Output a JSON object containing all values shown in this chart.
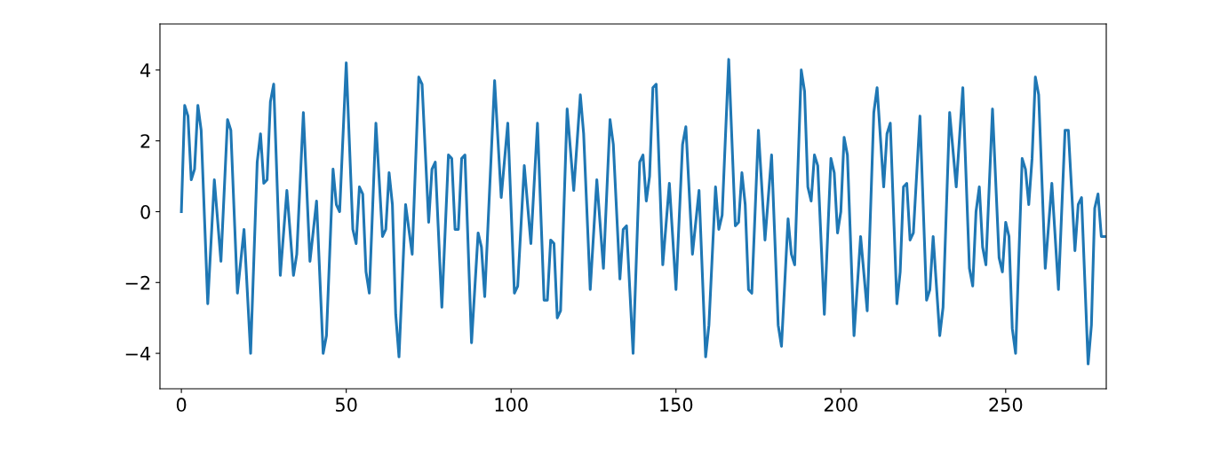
{
  "chart_data": {
    "type": "line",
    "x": [
      0,
      1,
      2,
      3,
      4,
      5,
      6,
      8,
      10,
      12,
      14,
      15,
      17,
      19,
      21,
      23,
      24,
      25,
      26,
      27,
      28,
      30,
      32,
      34,
      35,
      37,
      39,
      41,
      43,
      44,
      46,
      47,
      48,
      50,
      52,
      53,
      54,
      55,
      56,
      57,
      59,
      61,
      62,
      63,
      64,
      65,
      66,
      68,
      70,
      72,
      73,
      75,
      76,
      77,
      79,
      81,
      82,
      83,
      84,
      85,
      86,
      88,
      90,
      91,
      92,
      95,
      97,
      99,
      101,
      102,
      104,
      106,
      108,
      110,
      111,
      112,
      113,
      114,
      115,
      117,
      119,
      121,
      122,
      124,
      126,
      128,
      130,
      131,
      133,
      134,
      135,
      137,
      139,
      140,
      141,
      142,
      143,
      144,
      146,
      148,
      150,
      152,
      153,
      155,
      157,
      159,
      160,
      162,
      163,
      164,
      166,
      168,
      169,
      170,
      171,
      172,
      173,
      175,
      177,
      179,
      181,
      182,
      184,
      185,
      186,
      188,
      189,
      190,
      191,
      192,
      193,
      195,
      197,
      198,
      199,
      200,
      201,
      202,
      204,
      206,
      208,
      210,
      211,
      213,
      214,
      215,
      217,
      218,
      219,
      220,
      221,
      222,
      224,
      226,
      227,
      228,
      230,
      231,
      233,
      235,
      237,
      239,
      240,
      241,
      242,
      243,
      244,
      246,
      248,
      249,
      250,
      251,
      252,
      253,
      255,
      256,
      257,
      258,
      259,
      260,
      262,
      264,
      266,
      268,
      269,
      271,
      272,
      273,
      275,
      276,
      277,
      278,
      279,
      280
    ],
    "series": [
      {
        "color": "#1f77b4",
        "values": [
          0,
          3.0,
          2.7,
          0.9,
          1.2,
          3.0,
          2.3,
          -2.6,
          0.9,
          -1.4,
          2.6,
          2.3,
          -2.3,
          -0.5,
          -4.0,
          1.4,
          2.2,
          0.8,
          0.9,
          3.1,
          3.6,
          -1.8,
          0.6,
          -1.8,
          -1.2,
          2.8,
          -1.4,
          0.3,
          -4.0,
          -3.5,
          1.2,
          0.2,
          0.0,
          4.2,
          -0.5,
          -0.9,
          0.7,
          0.5,
          -1.7,
          -2.3,
          2.5,
          -0.7,
          -0.5,
          1.1,
          0.2,
          -2.9,
          -4.1,
          0.2,
          -1.2,
          3.8,
          3.6,
          -0.3,
          1.2,
          1.4,
          -2.7,
          1.6,
          1.5,
          -0.5,
          -0.5,
          1.5,
          1.6,
          -3.7,
          -0.6,
          -1.0,
          -2.4,
          3.7,
          0.4,
          2.5,
          -2.3,
          -2.1,
          1.3,
          -0.9,
          2.5,
          -2.5,
          -2.5,
          -0.8,
          -0.9,
          -3.0,
          -2.8,
          2.9,
          0.6,
          3.3,
          2.2,
          -2.2,
          0.9,
          -1.6,
          2.6,
          1.9,
          -1.9,
          -0.5,
          -0.4,
          -4.0,
          1.4,
          1.6,
          0.3,
          1.0,
          3.5,
          3.6,
          -1.5,
          0.8,
          -2.2,
          1.9,
          2.4,
          -1.2,
          0.6,
          -4.1,
          -3.2,
          0.7,
          -0.5,
          -0.1,
          4.3,
          -0.4,
          -0.3,
          1.1,
          0.2,
          -2.2,
          -2.3,
          2.3,
          -0.8,
          1.6,
          -3.2,
          -3.8,
          -0.2,
          -1.2,
          -1.5,
          4.0,
          3.4,
          0.7,
          0.3,
          1.6,
          1.3,
          -2.9,
          1.5,
          1.1,
          -0.6,
          0.0,
          2.1,
          1.6,
          -3.5,
          -0.7,
          -2.8,
          2.8,
          3.5,
          0.7,
          2.2,
          2.5,
          -2.6,
          -1.7,
          0.7,
          0.8,
          -0.8,
          -0.6,
          2.7,
          -2.5,
          -2.2,
          -0.7,
          -3.5,
          -2.7,
          2.8,
          0.7,
          3.5,
          -1.6,
          -2.1,
          0.0,
          0.7,
          -1.0,
          -1.5,
          2.9,
          -1.3,
          -1.7,
          -0.3,
          -0.7,
          -3.3,
          -4.0,
          1.5,
          1.2,
          0.2,
          1.5,
          3.8,
          3.3,
          -1.6,
          0.8,
          -2.2,
          2.3,
          2.3,
          -1.1,
          0.2,
          0.4,
          -4.3,
          -3.2,
          0.1,
          0.5,
          -0.7,
          -0.7
        ]
      }
    ],
    "xlim": [
      -6.5,
      280.5
    ],
    "ylim": [
      -5.0,
      5.3
    ],
    "xticks": [
      0,
      50,
      100,
      150,
      200,
      250
    ],
    "yticks": [
      {
        "value": -4,
        "label": "−4"
      },
      {
        "value": -2,
        "label": "−2"
      },
      0,
      2,
      4
    ],
    "grid": false,
    "marker": "none",
    "line_style": "solid"
  }
}
